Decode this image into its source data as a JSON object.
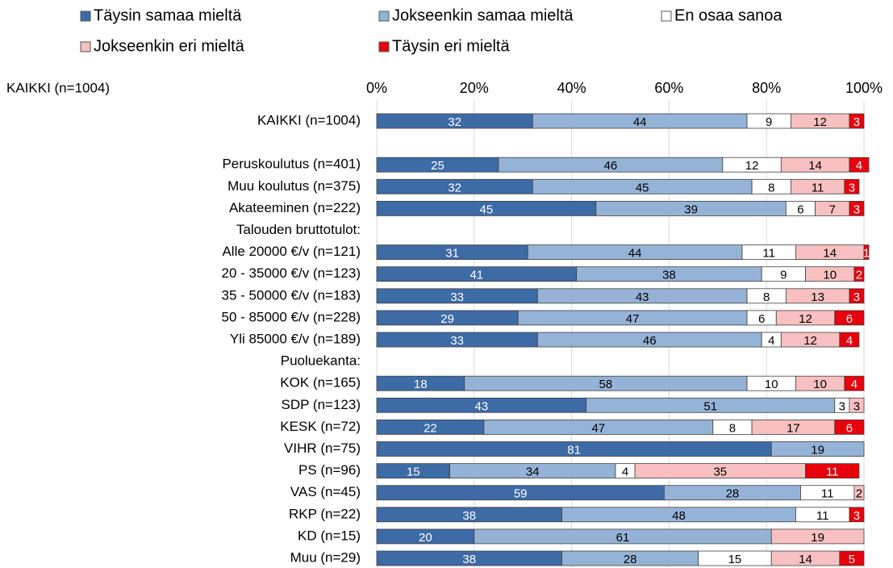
{
  "chart_data": {
    "type": "stacked-bar-horizontal",
    "annotation": "KAIKKI  (n=1004)",
    "categories": [
      "KAIKKI (n=1004)",
      null,
      "Peruskoulutus (n=401)",
      "Muu koulutus (n=375)",
      "Akateeminen (n=222)",
      "Talouden bruttotulot:",
      "Alle 20000 €/v (n=121)",
      "20 - 35000 €/v (n=123)",
      "35 - 50000 €/v (n=183)",
      "50 - 85000 €/v (n=228)",
      "Yli 85000 €/v (n=189)",
      "Puoluekanta:",
      "KOK (n=165)",
      "SDP (n=123)",
      "KESK (n=72)",
      "VIHR (n=75)",
      "PS (n=96)",
      "VAS (n=45)",
      "RKP (n=22)",
      "KD (n=15)",
      "Muu (n=29)"
    ],
    "series": [
      {
        "name": "Täysin samaa mieltä",
        "color": "#3d6ba6",
        "label_color": "#ffffff",
        "values": [
          32,
          null,
          25,
          32,
          45,
          null,
          31,
          41,
          33,
          29,
          33,
          null,
          18,
          43,
          22,
          81,
          15,
          59,
          38,
          20,
          38
        ]
      },
      {
        "name": "Jokseenkin samaa mieltä",
        "color": "#95b3d7",
        "label_color": "#000000",
        "values": [
          44,
          null,
          46,
          45,
          39,
          null,
          44,
          38,
          43,
          47,
          46,
          null,
          58,
          51,
          47,
          19,
          34,
          28,
          48,
          61,
          28
        ]
      },
      {
        "name": "En osaa sanoa",
        "color": "#ffffff",
        "label_color": "#000000",
        "values": [
          9,
          null,
          12,
          8,
          6,
          null,
          11,
          9,
          8,
          6,
          4,
          null,
          10,
          3,
          8,
          null,
          4,
          11,
          11,
          null,
          15
        ]
      },
      {
        "name": "Jokseenkin eri mieltä",
        "color": "#f8c0c0",
        "label_color": "#000000",
        "values": [
          12,
          null,
          14,
          11,
          7,
          null,
          14,
          10,
          13,
          12,
          12,
          null,
          10,
          3,
          17,
          null,
          35,
          2,
          null,
          19,
          14
        ]
      },
      {
        "name": "Täysin eri mieltä",
        "color": "#e8000b",
        "label_color": "#ffffff",
        "values": [
          3,
          null,
          4,
          3,
          3,
          null,
          1,
          2,
          3,
          6,
          4,
          null,
          4,
          null,
          6,
          null,
          11,
          null,
          3,
          null,
          5
        ]
      }
    ],
    "xlim": [
      0,
      100
    ],
    "xticks": [
      {
        "value": 0,
        "label": "0%"
      },
      {
        "value": 20,
        "label": "20%"
      },
      {
        "value": 40,
        "label": "40%"
      },
      {
        "value": 60,
        "label": "60%"
      },
      {
        "value": 80,
        "label": "80%"
      },
      {
        "value": 100,
        "label": "100%"
      }
    ],
    "grid": true
  }
}
